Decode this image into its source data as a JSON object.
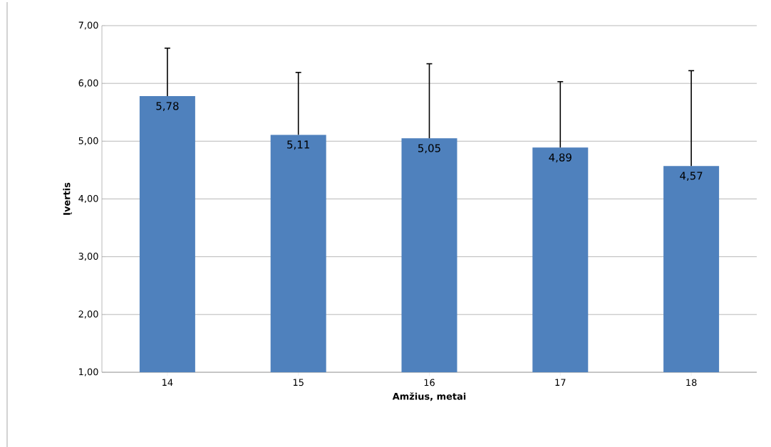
{
  "chart_data": {
    "type": "bar",
    "xlabel": "Amžius, metai",
    "ylabel": "Įvertis",
    "categories": [
      "14",
      "15",
      "16",
      "17",
      "18"
    ],
    "values": [
      5.78,
      5.11,
      5.05,
      4.89,
      4.57
    ],
    "value_labels": [
      "5,78",
      "5,11",
      "5,05",
      "4,89",
      "4,57"
    ],
    "errors": [
      [
        5.78,
        6.61
      ],
      [
        5.11,
        6.19
      ],
      [
        5.05,
        6.34
      ],
      [
        4.89,
        6.03
      ],
      [
        4.57,
        6.22
      ]
    ],
    "color": "#4f81bd",
    "ylim": [
      1,
      7
    ],
    "yticks": [
      {
        "value": 1,
        "label": "1,00"
      },
      {
        "value": 2,
        "label": "2,00"
      },
      {
        "value": 3,
        "label": "3,00"
      },
      {
        "value": 4,
        "label": "4,00"
      },
      {
        "value": 5,
        "label": "5,00"
      },
      {
        "value": 6,
        "label": "6,00"
      },
      {
        "value": 7,
        "label": "7,00"
      }
    ],
    "grid": "y"
  }
}
